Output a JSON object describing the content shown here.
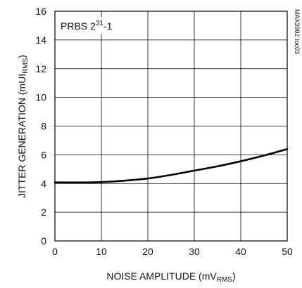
{
  "chart_data": {
    "type": "line",
    "title": "",
    "annotation": {
      "prefix": "PRBS 2",
      "superscript": "31",
      "suffix": "-1"
    },
    "watermark": "MAX3992 toc03",
    "xlabel": {
      "main": "NOISE AMPLITUDE (mV",
      "sub": "RMS",
      "close": ")"
    },
    "ylabel": {
      "main": "JITTER GENERATION (mUI",
      "sub": "RMS",
      "close": ")"
    },
    "xlim": [
      0,
      50
    ],
    "ylim": [
      0,
      16
    ],
    "x_ticks": [
      0,
      10,
      20,
      30,
      40,
      50
    ],
    "y_ticks": [
      0,
      2,
      4,
      6,
      8,
      10,
      12,
      14,
      16
    ],
    "grid": true,
    "series": [
      {
        "x": [
          0,
          5,
          10,
          15,
          20,
          25,
          30,
          35,
          40,
          45,
          50
        ],
        "y": [
          4.08,
          4.07,
          4.1,
          4.2,
          4.35,
          4.6,
          4.9,
          5.2,
          5.55,
          5.95,
          6.4
        ]
      }
    ]
  }
}
